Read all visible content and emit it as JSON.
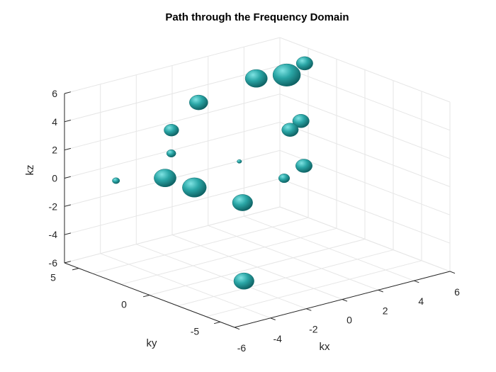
{
  "chart_data": {
    "type": "scatter",
    "subtype": "3d-isosurface",
    "title": "Path through the Frequency Domain",
    "xlabel": "kx",
    "ylabel": "ky",
    "zlabel": "kz",
    "xlim": [
      -6,
      6
    ],
    "ylim": [
      -6,
      6
    ],
    "zlim": [
      -6,
      6
    ],
    "x_ticks": [
      "-6",
      "-4",
      "-2",
      "0",
      "2",
      "4",
      "6"
    ],
    "y_ticks": [
      "5",
      "0",
      "-5"
    ],
    "z_ticks": [
      "6",
      "4",
      "2",
      "0",
      "-2",
      "-4",
      "-6"
    ],
    "grid": true,
    "surface_color": "#2aa6a6",
    "blobs": [
      {
        "x": -0.5,
        "y": 3.5,
        "z": 4.5,
        "size": 1.0
      },
      {
        "x": -3.2,
        "y": 2.0,
        "z": 4.0,
        "size": 0.8
      },
      {
        "x": -4.0,
        "y": 1.0,
        "z": 3.0,
        "size": 0.5
      },
      {
        "x": -4.5,
        "y": 0.8,
        "z": 1.5,
        "size": 1.2
      },
      {
        "x": -3.5,
        "y": 0.0,
        "z": 0.8,
        "size": 1.3
      },
      {
        "x": -5.5,
        "y": 3.0,
        "z": 0.8,
        "size": 0.4
      },
      {
        "x": -0.6,
        "y": 0.5,
        "z": 1.5,
        "size": 0.25
      },
      {
        "x": -2.0,
        "y": -1.5,
        "z": -0.2,
        "size": 1.1
      },
      {
        "x": -3.5,
        "y": -3.5,
        "z": -4.5,
        "size": 1.1
      },
      {
        "x": 1.5,
        "y": 0.0,
        "z": -0.2,
        "size": 0.6
      },
      {
        "x": 3.0,
        "y": 0.5,
        "z": 0.0,
        "size": 0.9
      },
      {
        "x": 4.2,
        "y": 3.0,
        "z": 1.2,
        "size": 0.9
      },
      {
        "x": 5.2,
        "y": 3.5,
        "z": 1.3,
        "size": 0.9
      },
      {
        "x": 3.5,
        "y": 4.5,
        "z": 4.5,
        "size": 1.2
      },
      {
        "x": 4.8,
        "y": 4.0,
        "z": 4.5,
        "size": 1.5
      },
      {
        "x": 5.8,
        "y": 4.0,
        "z": 5.0,
        "size": 0.9
      }
    ]
  }
}
